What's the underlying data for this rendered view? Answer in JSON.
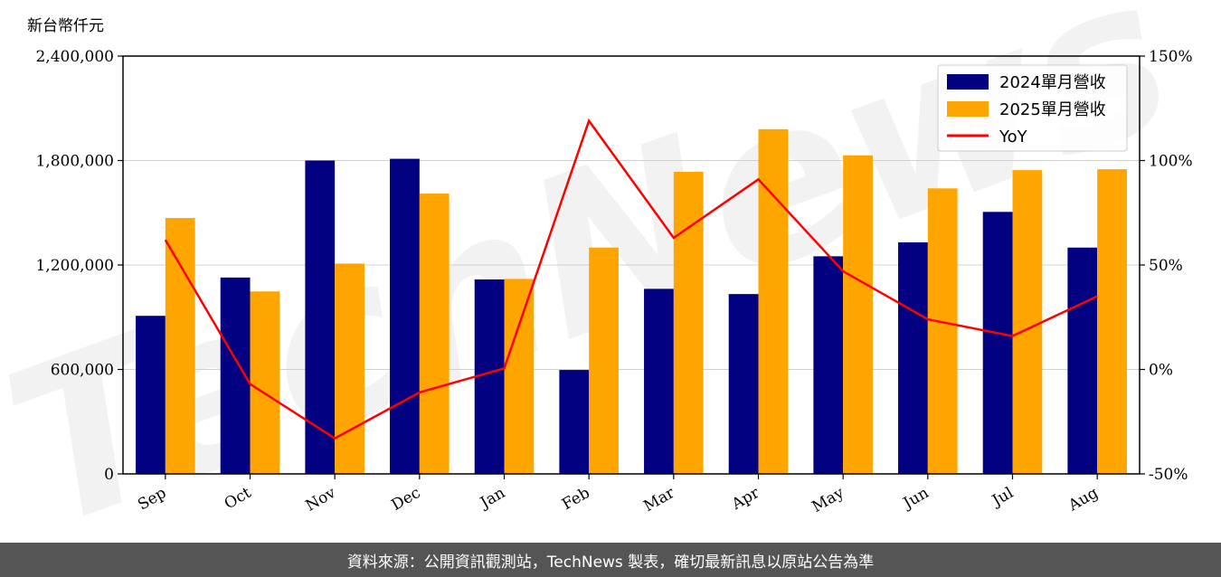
{
  "chart_data": {
    "type": "bar",
    "y_unit_label": "新台幣仟元",
    "categories": [
      "Sep",
      "Oct",
      "Nov",
      "Dec",
      "Jan",
      "Feb",
      "Mar",
      "Apr",
      "May",
      "Jun",
      "Jul",
      "Aug"
    ],
    "series": [
      {
        "name": "2024單月營收",
        "type": "bar",
        "axis": "left",
        "color": "#000080",
        "values": [
          908000,
          1128000,
          1800000,
          1810000,
          1117000,
          597000,
          1063000,
          1033000,
          1250000,
          1330000,
          1505000,
          1300000
        ]
      },
      {
        "name": "2025單月營收",
        "type": "bar",
        "axis": "left",
        "color": "#FFA500",
        "values": [
          1470000,
          1048000,
          1208000,
          1610000,
          1120000,
          1300000,
          1735000,
          1980000,
          1830000,
          1640000,
          1745000,
          1750000
        ]
      },
      {
        "name": "YoY",
        "type": "line",
        "axis": "right",
        "color": "#FF0000",
        "values": [
          62,
          -7,
          -33,
          -11,
          0.5,
          119,
          63,
          91,
          47,
          24,
          16,
          35
        ]
      }
    ],
    "y_left": {
      "min": 0,
      "max": 2400000,
      "ticks": [
        0,
        600000,
        1200000,
        1800000,
        2400000
      ],
      "tick_labels": [
        "0",
        "600,000",
        "1,200,000",
        "1,800,000",
        "2,400,000"
      ]
    },
    "y_right": {
      "min": -50,
      "max": 150,
      "ticks": [
        -50,
        0,
        50,
        100,
        150
      ],
      "tick_labels": [
        "-50%",
        "0%",
        "50%",
        "100%",
        "150%"
      ]
    },
    "grid": "horizontal",
    "legend_position": "top-right"
  },
  "watermark": "TechNews",
  "footer": {
    "source_text": "資料來源：公開資訊觀測站，TechNews 製表，確切最新訊息以原站公告為準"
  }
}
